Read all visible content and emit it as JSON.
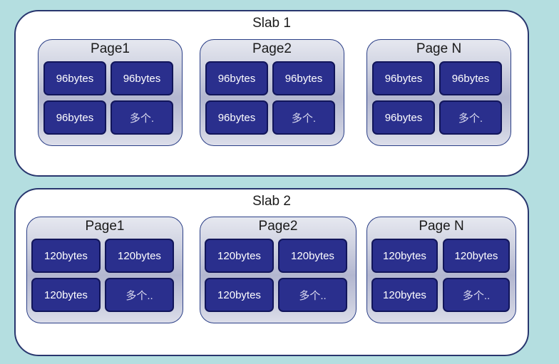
{
  "slabs": [
    {
      "title": "Slab 1",
      "pages": [
        {
          "title": "Page1",
          "blocks": [
            "96bytes",
            "96bytes",
            "96bytes",
            "多个."
          ]
        },
        {
          "title": "Page2",
          "blocks": [
            "96bytes",
            "96bytes",
            "96bytes",
            "多个."
          ]
        },
        {
          "title": "Page N",
          "blocks": [
            "96bytes",
            "96bytes",
            "96bytes",
            "多个."
          ]
        }
      ]
    },
    {
      "title": "Slab 2",
      "pages": [
        {
          "title": "Page1",
          "blocks": [
            "120bytes",
            "120bytes",
            "120bytes",
            "多个.."
          ]
        },
        {
          "title": "Page2",
          "blocks": [
            "120bytes",
            "120bytes",
            "120bytes",
            "多个.."
          ]
        },
        {
          "title": "Page N",
          "blocks": [
            "120bytes",
            "120bytes",
            "120bytes",
            "多个.."
          ]
        }
      ]
    }
  ]
}
